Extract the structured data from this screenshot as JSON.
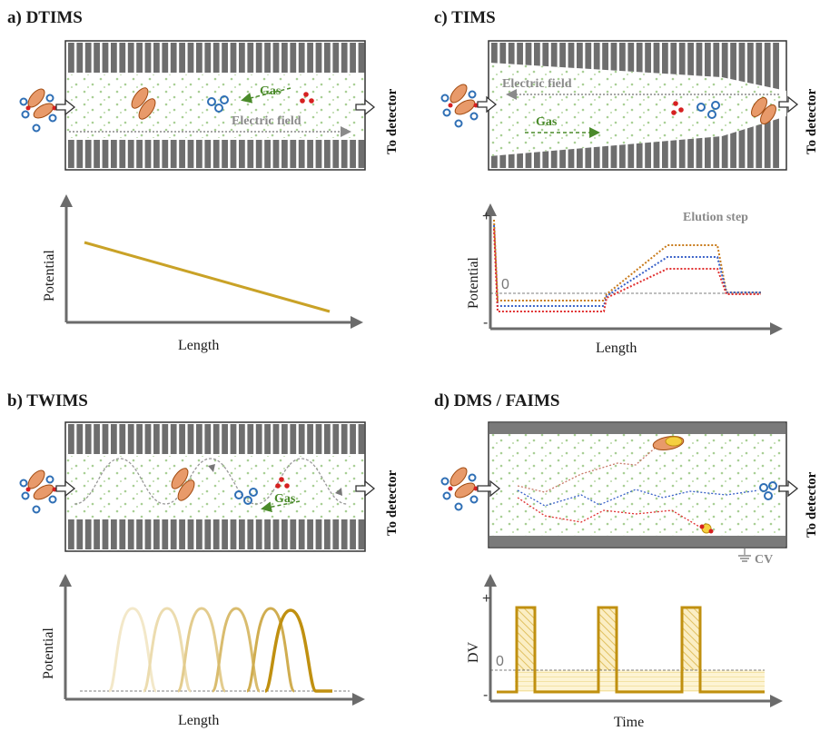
{
  "panels": {
    "a": {
      "title": "a) DTIMS",
      "gas": "Gas",
      "field": "Electric field",
      "detector": "To detector",
      "ylabel": "Potential",
      "xlabel": "Length"
    },
    "b": {
      "title": "b) TWIMS",
      "gas": "Gas",
      "detector": "To detector",
      "ylabel": "Potential",
      "xlabel": "Length"
    },
    "c": {
      "title": "c) TIMS",
      "gas": "Gas",
      "field": "Electric field",
      "detector": "To detector",
      "ylabel": "Potential",
      "xlabel": "Length",
      "step": "Elution step",
      "plus": "+",
      "minus": "-",
      "zero": "0"
    },
    "d": {
      "title": "d) DMS / FAIMS",
      "detector": "To detector",
      "cv": "CV",
      "ylabel": "DV",
      "xlabel": "Time",
      "plus": "+",
      "minus": "-",
      "zero": "0"
    }
  },
  "colors": {
    "gold": "#c9a227",
    "plate": "#6e6e6e",
    "gas_dot": "#a9cf95",
    "ion_orange": "#e89a6a",
    "ion_blue": "#2f6fb5",
    "ion_red": "#d62020",
    "trace_red": "#e03030",
    "trace_blue": "#3a62c8",
    "trace_orange": "#c87a1a"
  }
}
